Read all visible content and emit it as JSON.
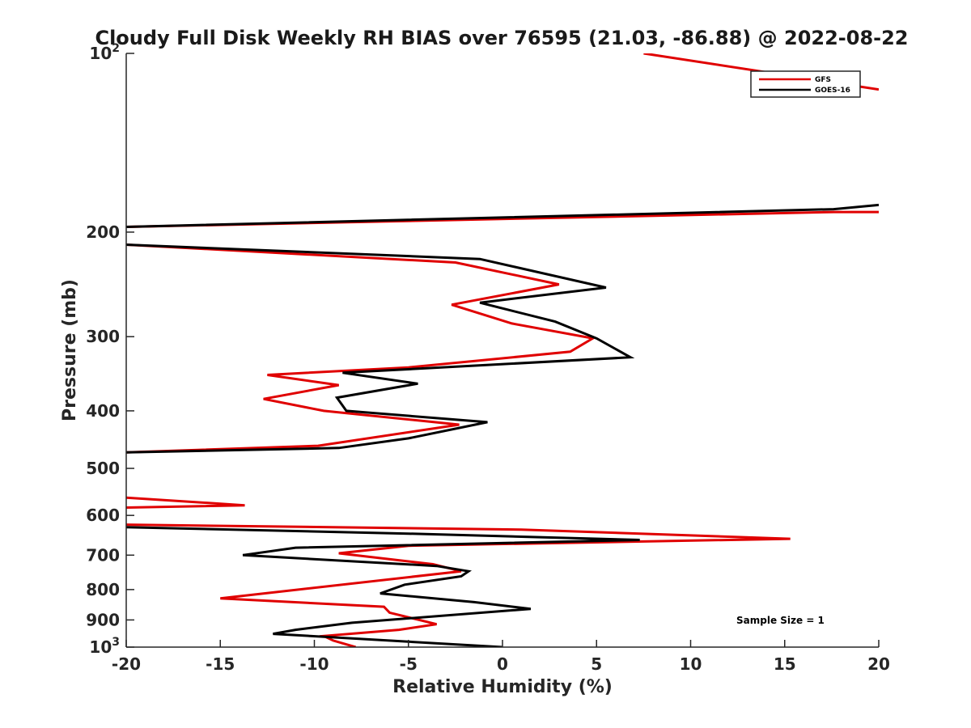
{
  "chart_data": {
    "type": "line",
    "title": "Cloudy Full Disk Weekly RH BIAS over 76595 (21.03, -86.88) @ 2022-08-22",
    "xlabel": "Relative Humidity (%)",
    "ylabel": "Pressure (mb)",
    "xlim": [
      -20,
      20
    ],
    "ylim": [
      100,
      1000
    ],
    "yscale": "log",
    "y_reversed": true,
    "x_ticks": [
      -20,
      -15,
      -10,
      -5,
      0,
      5,
      10,
      15,
      20
    ],
    "x_tick_labels": [
      "-20",
      "-15",
      "-10",
      "-5",
      "0",
      "5",
      "10",
      "15",
      "20"
    ],
    "y_ticks": [
      {
        "value": 100,
        "base": "10",
        "exp": "2"
      },
      {
        "value": 200,
        "label": "200"
      },
      {
        "value": 300,
        "label": "300"
      },
      {
        "value": 400,
        "label": "400"
      },
      {
        "value": 500,
        "label": "500"
      },
      {
        "value": 600,
        "label": "600"
      },
      {
        "value": 700,
        "label": "700"
      },
      {
        "value": 800,
        "label": "800"
      },
      {
        "value": 900,
        "label": "900"
      },
      {
        "value": 1000,
        "base": "10",
        "exp": "3"
      }
    ],
    "legend_position": "top-right",
    "annotation": "Sample Size = 1",
    "series": [
      {
        "name": "GFS",
        "color": "#e00000",
        "points": [
          [
            7.5,
            100
          ],
          [
            20,
            115
          ],
          null,
          [
            20,
            185
          ],
          [
            17.6,
            185
          ],
          [
            -20,
            196
          ],
          null,
          [
            -20,
            210
          ],
          [
            -2.5,
            225
          ],
          [
            3,
            245
          ],
          [
            -2.7,
            265
          ],
          [
            0.5,
            285
          ],
          [
            4.8,
            302
          ],
          [
            3.6,
            318
          ],
          [
            -5,
            338
          ],
          [
            -12.5,
            348
          ],
          [
            -8.7,
            362
          ],
          [
            -12.7,
            382
          ],
          [
            -9.5,
            400
          ],
          [
            -2.3,
            422
          ],
          [
            -9.8,
            458
          ],
          [
            -20,
            470
          ],
          null,
          [
            -20,
            560
          ],
          [
            -13.7,
            577
          ],
          [
            -20,
            582
          ],
          null,
          [
            -20,
            622
          ],
          [
            1,
            634
          ],
          [
            15.3,
            657
          ],
          [
            -5,
            675
          ],
          [
            -8.7,
            695
          ],
          [
            -3.7,
            725
          ],
          [
            -2.2,
            745
          ],
          [
            -15,
            828
          ],
          [
            -6.3,
            855
          ],
          [
            -6.0,
            875
          ],
          [
            -3.5,
            915
          ],
          [
            -5.5,
            935
          ],
          [
            -9.5,
            958
          ],
          [
            -9,
            975
          ],
          [
            -7.8,
            1000
          ]
        ]
      },
      {
        "name": "GOES-16",
        "color": "#000000",
        "points": [
          [
            20,
            180
          ],
          [
            17.6,
            183
          ],
          [
            -20,
            196
          ],
          null,
          [
            -20,
            210
          ],
          [
            -1.2,
            222
          ],
          [
            5.5,
            248
          ],
          [
            -1.2,
            263
          ],
          [
            2.8,
            283
          ],
          [
            5,
            302
          ],
          [
            6.8,
            325
          ],
          [
            -8.5,
            345
          ],
          [
            -4.5,
            360
          ],
          [
            -8.8,
            380
          ],
          [
            -8.3,
            400
          ],
          [
            -0.8,
            418
          ],
          [
            -5,
            445
          ],
          [
            -8.7,
            462
          ],
          [
            -20,
            470
          ],
          null,
          [
            -20,
            628
          ],
          [
            -5,
            644
          ],
          [
            7.3,
            660
          ],
          [
            -11,
            680
          ],
          [
            -13.8,
            700
          ],
          [
            -3.5,
            730
          ],
          [
            -1.8,
            745
          ],
          [
            -2.2,
            760
          ],
          [
            -5.2,
            785
          ],
          [
            -6.5,
            812
          ],
          [
            -1.5,
            840
          ],
          [
            1.5,
            862
          ],
          [
            -8,
            910
          ],
          [
            -11,
            935
          ],
          [
            -12.2,
            950
          ],
          [
            0,
            1000
          ]
        ]
      }
    ]
  }
}
